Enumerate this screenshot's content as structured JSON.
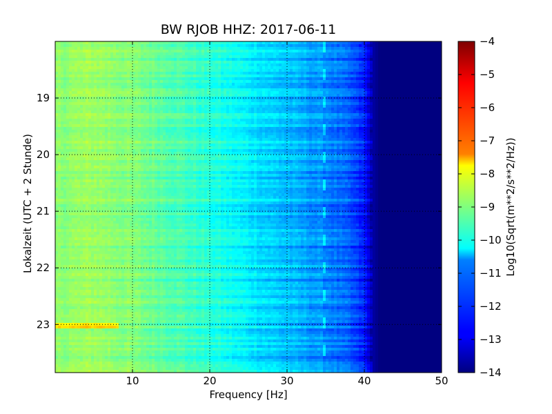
{
  "chart_data": {
    "type": "heatmap",
    "title": "BW RJOB HHZ: 2017-06-11",
    "xlabel": "Frequency [Hz]",
    "ylabel": "Lokalzeit (UTC + 2 Stunde)",
    "xlim": [
      0,
      50
    ],
    "ylim_hours": [
      18.0,
      23.85
    ],
    "y_inverted": true,
    "x_ticks": [
      10,
      20,
      30,
      40,
      50
    ],
    "y_ticks": [
      19,
      20,
      21,
      22,
      23
    ],
    "grid": true,
    "colormap": "jet",
    "colorbar": {
      "label": "Log10(Sqrt(m**2/s**2/Hz))",
      "range": [
        -14,
        -4
      ],
      "ticks": [
        -4,
        -5,
        -6,
        -7,
        -8,
        -9,
        -10,
        -11,
        -12,
        -13,
        -14
      ]
    },
    "spectrum_profile": {
      "frequency_hz": [
        0,
        5,
        10,
        15,
        20,
        25,
        30,
        35,
        38,
        40,
        41,
        42,
        50
      ],
      "log10_value": [
        -8.9,
        -8.7,
        -9.0,
        -9.4,
        -9.9,
        -10.4,
        -10.9,
        -11.4,
        -11.9,
        -12.5,
        -13.6,
        -14,
        -14
      ]
    },
    "narrowband_line_hz": 34.5,
    "strong_events_hours": [
      23.01
    ]
  },
  "colors": {
    "axis": "#000000",
    "grid": "#000000",
    "background": "#ffffff"
  }
}
